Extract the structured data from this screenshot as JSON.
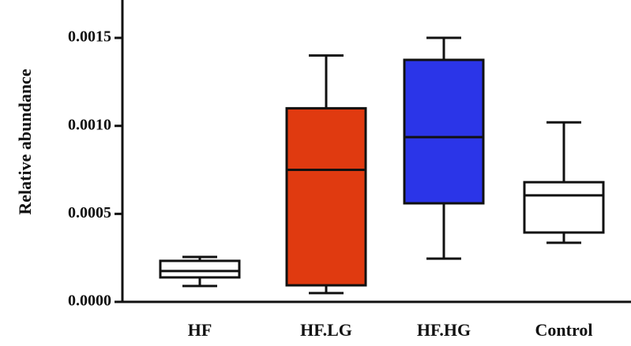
{
  "chart_data": {
    "type": "box",
    "ylabel": "Relative abundance",
    "categories": [
      "HF",
      "HF.LG",
      "HF.HG",
      "Control"
    ],
    "min": [
      9e-05,
      5e-05,
      0.000246,
      0.000336
    ],
    "q1": [
      0.000139,
      9.4e-05,
      0.00056,
      0.000394
    ],
    "median": [
      0.000175,
      0.00075,
      0.000936,
      0.000605
    ],
    "q3": [
      0.000233,
      0.0011,
      0.001375,
      0.00068
    ],
    "max": [
      0.000255,
      0.0014,
      0.0015,
      0.00102
    ],
    "colors": [
      "#ffffff",
      "#e03a10",
      "#2b35e8",
      "#ffffff"
    ],
    "ylim": [
      0,
      0.0017
    ],
    "yticks": [
      {
        "value": 0,
        "label": "0.0000"
      },
      0.0005,
      {
        "value": 0.001,
        "label": "0.0010"
      },
      0.0015
    ]
  }
}
